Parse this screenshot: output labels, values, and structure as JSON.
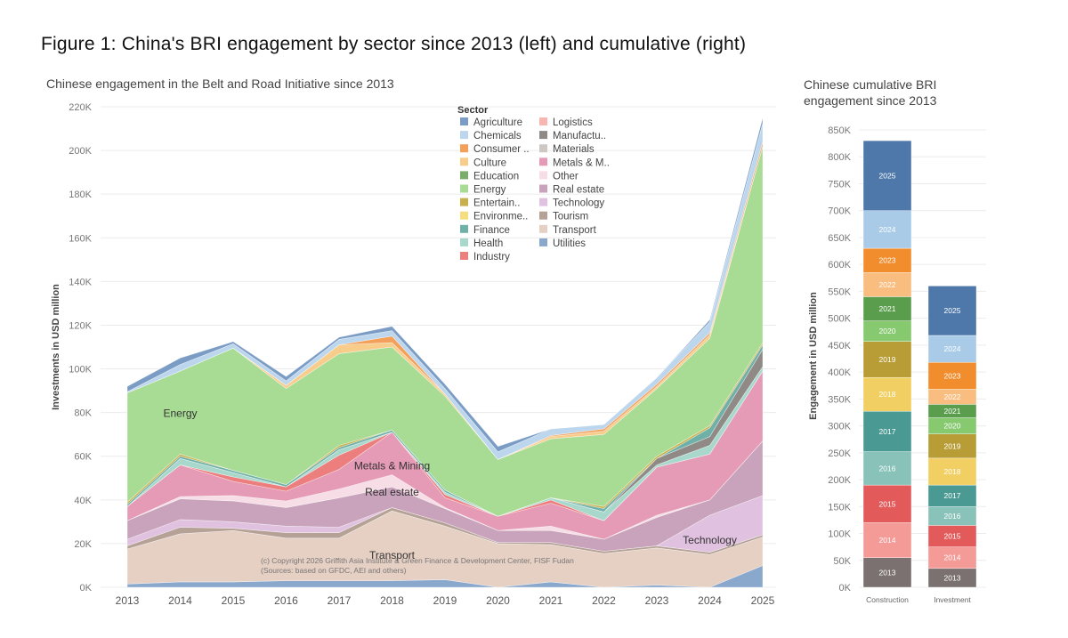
{
  "figure_title": "Figure 1: China's BRI engagement by sector since 2013 (left) and cumulative (right)",
  "chart_data": [
    {
      "type": "area",
      "title": "Chinese engagement in the Belt and Road Initiative since 2013",
      "ylabel": "Investments in USD million",
      "xlabel": "",
      "ylim": [
        0,
        220000
      ],
      "yticks": [
        "0K",
        "20K",
        "40K",
        "60K",
        "80K",
        "100K",
        "120K",
        "140K",
        "160K",
        "180K",
        "200K",
        "220K"
      ],
      "x": [
        "2013",
        "2014",
        "2015",
        "2016",
        "2017",
        "2018",
        "2019",
        "2020",
        "2021",
        "2022",
        "2023",
        "2024",
        "2025"
      ],
      "grid": true,
      "legend_title": "Sector",
      "legend_position": "top-center",
      "legend": [
        {
          "name": "Agriculture",
          "color": "#7b9cc4"
        },
        {
          "name": "Chemicals",
          "color": "#bcd6ee"
        },
        {
          "name": "Consumer ..",
          "color": "#f2a05a"
        },
        {
          "name": "Culture",
          "color": "#f8cc8a"
        },
        {
          "name": "Education",
          "color": "#7aac6a"
        },
        {
          "name": "Energy",
          "color": "#a8dc94"
        },
        {
          "name": "Entertain..",
          "color": "#c8b04c"
        },
        {
          "name": "Environme..",
          "color": "#f4de80"
        },
        {
          "name": "Finance",
          "color": "#6fb0a8"
        },
        {
          "name": "Health",
          "color": "#a8d8cc"
        },
        {
          "name": "Industry",
          "color": "#ec7e7e"
        },
        {
          "name": "Logistics",
          "color": "#f7b6b0"
        },
        {
          "name": "Manufactu..",
          "color": "#8f8a86"
        },
        {
          "name": "Materials",
          "color": "#cdc8c4"
        },
        {
          "name": "Metals & M..",
          "color": "#e59bb6"
        },
        {
          "name": "Other",
          "color": "#f7dde6"
        },
        {
          "name": "Real estate",
          "color": "#c8a3bb"
        },
        {
          "name": "Technology",
          "color": "#e0c2e0"
        },
        {
          "name": "Tourism",
          "color": "#b5a195"
        },
        {
          "name": "Transport",
          "color": "#e6cfc3"
        },
        {
          "name": "Utilities",
          "color": "#8aa8cc"
        }
      ],
      "series": [
        {
          "name": "Utilities",
          "color": "#8aa8cc",
          "values": [
            1500,
            2500,
            2500,
            3000,
            3000,
            3000,
            3500,
            0,
            2500,
            0,
            1000,
            0,
            10000
          ]
        },
        {
          "name": "Transport",
          "color": "#e6cfc3",
          "values": [
            16000,
            22000,
            23500,
            19500,
            19500,
            32000,
            24500,
            20000,
            17000,
            15500,
            17000,
            15000,
            13000
          ]
        },
        {
          "name": "Tourism",
          "color": "#b5a195",
          "values": [
            1500,
            3000,
            1000,
            2500,
            2500,
            1500,
            1500,
            500,
            1000,
            1000,
            1000,
            1000,
            1000
          ]
        },
        {
          "name": "Technology",
          "color": "#e0c2e0",
          "values": [
            3000,
            3500,
            3000,
            3000,
            2500,
            0,
            0,
            0,
            0,
            0,
            0,
            17000,
            18000
          ]
        },
        {
          "name": "Real estate",
          "color": "#c8a3bb",
          "values": [
            8500,
            9500,
            9500,
            8500,
            13500,
            9500,
            6500,
            5500,
            5500,
            5500,
            13000,
            7000,
            25000
          ]
        },
        {
          "name": "Other",
          "color": "#f7dde6",
          "values": [
            0,
            1000,
            2500,
            3000,
            4000,
            5500,
            500,
            0,
            2000,
            0,
            1000,
            0,
            0
          ]
        },
        {
          "name": "Metals & Mining",
          "color": "#e59bb6",
          "values": [
            6500,
            14500,
            6500,
            4500,
            9000,
            19500,
            4500,
            6500,
            10500,
            8500,
            22000,
            21000,
            32000
          ]
        },
        {
          "name": "Industry",
          "color": "#ec7e7e",
          "values": [
            0,
            0,
            2000,
            2000,
            6500,
            0,
            1500,
            0,
            1500,
            0,
            0,
            0,
            0
          ]
        },
        {
          "name": "Health",
          "color": "#a8d8cc",
          "values": [
            0,
            3000,
            2000,
            0,
            2500,
            0,
            1000,
            0,
            1000,
            4000,
            1000,
            4000,
            2000
          ]
        },
        {
          "name": "Manufacturing",
          "color": "#8f8a86",
          "values": [
            0,
            0,
            0,
            0,
            0,
            0,
            0,
            0,
            0,
            0,
            3000,
            4000,
            8000
          ]
        },
        {
          "name": "Finance",
          "color": "#6fb0a8",
          "values": [
            1000,
            1000,
            1000,
            1000,
            1000,
            1000,
            1000,
            0,
            0,
            1500,
            0,
            4000,
            2000
          ]
        },
        {
          "name": "Entertainment",
          "color": "#c8b04c",
          "values": [
            1000,
            1000,
            0,
            0,
            1000,
            0,
            0,
            0,
            0,
            1000,
            1000,
            1000,
            1000
          ]
        },
        {
          "name": "Energy",
          "color": "#a8dc94",
          "values": [
            50000,
            38000,
            56000,
            44000,
            42000,
            38000,
            43000,
            26000,
            27000,
            33000,
            31000,
            40000,
            90000
          ]
        },
        {
          "name": "Culture",
          "color": "#f8cc8a",
          "values": [
            0,
            0,
            0,
            1500,
            4000,
            2000,
            1000,
            0,
            1000,
            1500,
            1000,
            1500,
            0
          ]
        },
        {
          "name": "Consumer",
          "color": "#f2a05a",
          "values": [
            0,
            0,
            0,
            0,
            0,
            3000,
            0,
            0,
            500,
            1000,
            1000,
            1000,
            2000
          ]
        },
        {
          "name": "Chemicals",
          "color": "#bcd6ee",
          "values": [
            500,
            3000,
            2000,
            2000,
            2500,
            2500,
            2500,
            3500,
            3000,
            2000,
            3000,
            5000,
            8500
          ]
        },
        {
          "name": "Agriculture",
          "color": "#7b9cc4",
          "values": [
            2500,
            3000,
            1000,
            2000,
            1000,
            2000,
            2000,
            2500,
            0,
            0,
            0,
            1000,
            2500
          ]
        }
      ],
      "annotations": [
        {
          "text": "Energy",
          "x": "2014",
          "y": 78000
        },
        {
          "text": "Metals & Mining",
          "x": "2018",
          "y": 54000
        },
        {
          "text": "Real estate",
          "x": "2018",
          "y": 42000
        },
        {
          "text": "Technology",
          "x": "2024",
          "y": 20000
        },
        {
          "text": "Transport",
          "x": "2018",
          "y": 13000
        }
      ],
      "copyright": [
        "(c) Copyright 2026 Griffith Asia Institute & Green Finance & Development Center, FISF Fudan",
        "(Sources: based on GFDC, AEI and others)"
      ]
    },
    {
      "type": "bar",
      "stacked": true,
      "title": "Chinese cumulative BRI engagement since 2013",
      "ylabel": "Engagement in USD million",
      "xlabel": "",
      "ylim": [
        0,
        850000
      ],
      "yticks": [
        "0K",
        "50K",
        "100K",
        "150K",
        "200K",
        "250K",
        "300K",
        "350K",
        "400K",
        "450K",
        "500K",
        "550K",
        "600K",
        "650K",
        "700K",
        "750K",
        "800K",
        "850K"
      ],
      "categories": [
        "Construction",
        "Investment"
      ],
      "year_colors": {
        "2013": "#7a7170",
        "2014": "#f49a97",
        "2015": "#e35a5b",
        "2016": "#89c2b8",
        "2017": "#4a9a93",
        "2018": "#f2cf62",
        "2019": "#b89c35",
        "2020": "#86c96f",
        "2021": "#5a9e4d",
        "2022": "#f9bd7f",
        "2023": "#f28d2d",
        "2024": "#a9cbe8",
        "2025": "#4e78aa"
      },
      "series": [
        {
          "category": "Construction",
          "segments": [
            {
              "year": "2013",
              "value": 55000
            },
            {
              "year": "2014",
              "value": 65000
            },
            {
              "year": "2015",
              "value": 70000
            },
            {
              "year": "2016",
              "value": 62000
            },
            {
              "year": "2017",
              "value": 75000
            },
            {
              "year": "2018",
              "value": 63000
            },
            {
              "year": "2019",
              "value": 67000
            },
            {
              "year": "2020",
              "value": 38000
            },
            {
              "year": "2021",
              "value": 45000
            },
            {
              "year": "2022",
              "value": 45000
            },
            {
              "year": "2023",
              "value": 45000
            },
            {
              "year": "2024",
              "value": 70000
            },
            {
              "year": "2025",
              "value": 130000
            }
          ]
        },
        {
          "category": "Investment",
          "segments": [
            {
              "year": "2013",
              "value": 35000
            },
            {
              "year": "2014",
              "value": 40000
            },
            {
              "year": "2015",
              "value": 40000
            },
            {
              "year": "2016",
              "value": 35000
            },
            {
              "year": "2017",
              "value": 40000
            },
            {
              "year": "2018",
              "value": 50000
            },
            {
              "year": "2019",
              "value": 45000
            },
            {
              "year": "2020",
              "value": 30000
            },
            {
              "year": "2021",
              "value": 25000
            },
            {
              "year": "2022",
              "value": 28000
            },
            {
              "year": "2023",
              "value": 50000
            },
            {
              "year": "2024",
              "value": 50000
            },
            {
              "year": "2025",
              "value": 92000
            }
          ]
        }
      ]
    }
  ]
}
